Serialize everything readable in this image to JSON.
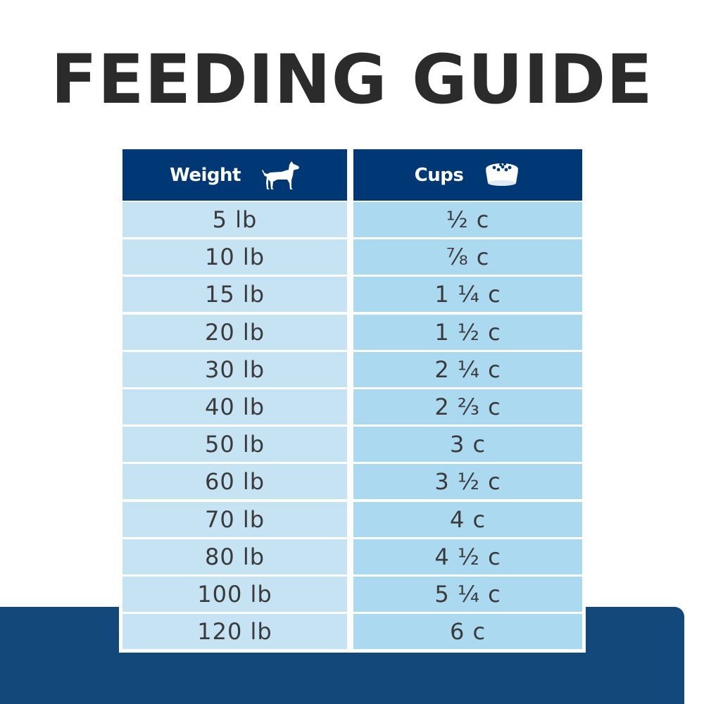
{
  "title": "FEEDING GUIDE",
  "colors": {
    "title": "#2b2b2b",
    "header_bg": "#003876",
    "weight_cell_bg": "#c5e3f3",
    "cups_cell_bg": "#abdaf0",
    "bottom_band": "#13497a"
  },
  "table": {
    "headers": {
      "weight": {
        "label": "Weight",
        "icon": "dog-icon"
      },
      "cups": {
        "label": "Cups",
        "icon": "food-bowl-icon"
      }
    },
    "rows": [
      {
        "weight": "5 lb",
        "cups": "½ c"
      },
      {
        "weight": "10 lb",
        "cups": "⅞ c"
      },
      {
        "weight": "15 lb",
        "cups": "1 ¼ c"
      },
      {
        "weight": "20 lb",
        "cups": "1 ½ c"
      },
      {
        "weight": "30 lb",
        "cups": "2 ¼ c"
      },
      {
        "weight": "40 lb",
        "cups": "2 ⅔ c"
      },
      {
        "weight": "50 lb",
        "cups": "3 c"
      },
      {
        "weight": "60 lb",
        "cups": "3 ½ c"
      },
      {
        "weight": "70 lb",
        "cups": "4 c"
      },
      {
        "weight": "80 lb",
        "cups": "4 ½ c"
      },
      {
        "weight": "100 lb",
        "cups": "5 ¼ c"
      },
      {
        "weight": "120 lb",
        "cups": "6 c"
      }
    ]
  }
}
